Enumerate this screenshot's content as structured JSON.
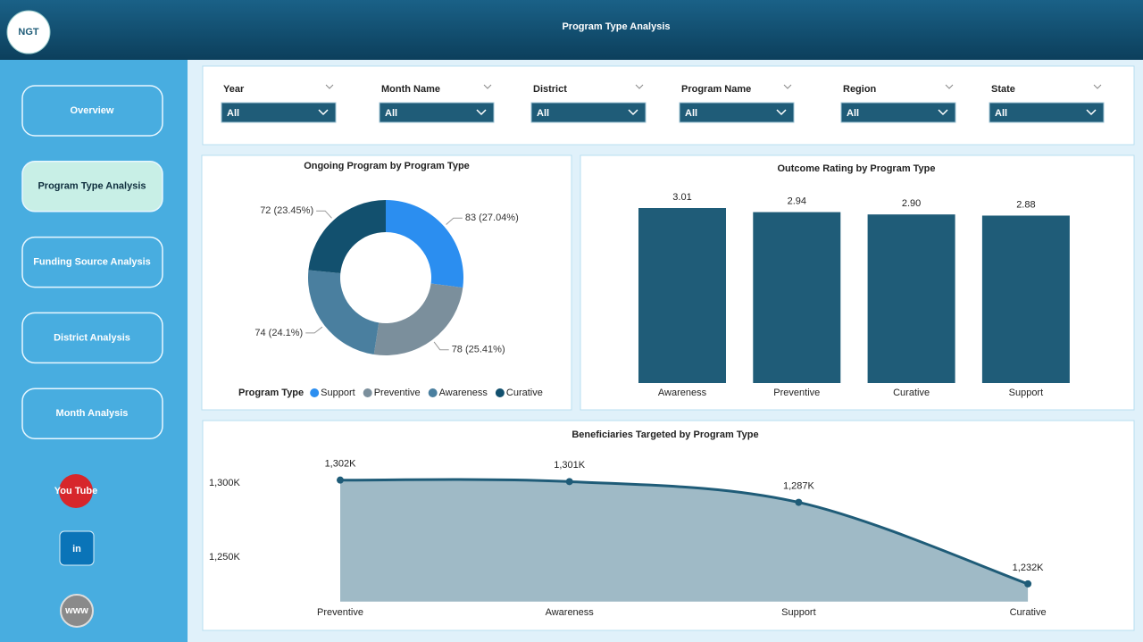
{
  "header": {
    "title": "Program Type Analysis",
    "logo": "NGT"
  },
  "nav": [
    "Overview",
    "Program Type Analysis",
    "Funding Source Analysis",
    "District Analysis",
    "Month Analysis"
  ],
  "social": [
    "You Tube",
    "in",
    "www"
  ],
  "filters": [
    {
      "label": "Year",
      "value": "All"
    },
    {
      "label": "Month Name",
      "value": "All"
    },
    {
      "label": "District",
      "value": "All"
    },
    {
      "label": "Program Name",
      "value": "All"
    },
    {
      "label": "Region",
      "value": "All"
    },
    {
      "label": "State",
      "value": "All"
    }
  ],
  "chart_data": [
    {
      "type": "donut",
      "title": "Ongoing Program by Program Type",
      "legend_title": "Program Type",
      "categories": [
        "Support",
        "Preventive",
        "Awareness",
        "Curative"
      ],
      "values": [
        83,
        78,
        74,
        72
      ],
      "value_labels": [
        "83 (27.04%)",
        "78 (25.41%)",
        "74 (24.1%)",
        "72 (23.45%)"
      ],
      "colors": [
        "#2b8ef0",
        "#7b8f9c",
        "#4a7f9f",
        "#12506e"
      ]
    },
    {
      "type": "bar",
      "title": "Outcome Rating by Program Type",
      "categories": [
        "Awareness",
        "Preventive",
        "Curative",
        "Support"
      ],
      "values": [
        3.01,
        2.94,
        2.9,
        2.88
      ],
      "value_labels": [
        "3.01",
        "2.94",
        "2.90",
        "2.88"
      ],
      "color": "#1f5c78"
    },
    {
      "type": "area",
      "title": "Beneficiaries Targeted by Program Type",
      "categories": [
        "Preventive",
        "Awareness",
        "Support",
        "Curative"
      ],
      "values": [
        1302000,
        1301000,
        1287000,
        1232000
      ],
      "value_labels": [
        "1,302K",
        "1,301K",
        "1,287K",
        "1,232K"
      ],
      "ylim": [
        1220000,
        1320000
      ],
      "yticks": [
        {
          "value": 1250000,
          "label": "1,250K"
        },
        {
          "value": 1300000,
          "label": "1,300K"
        }
      ],
      "color": "#1f5c78",
      "fill": "#9fbac6"
    }
  ]
}
